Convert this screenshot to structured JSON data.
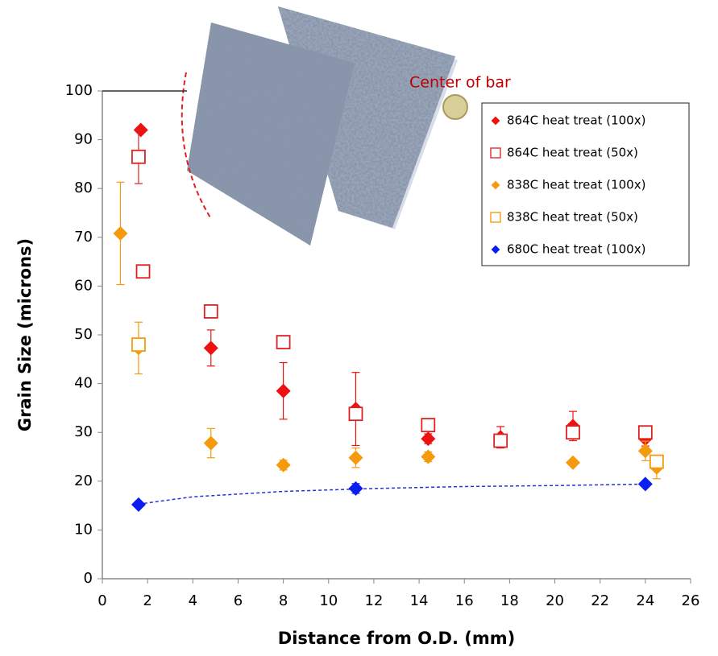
{
  "chart_data": {
    "type": "scatter",
    "xlabel": "Distance from O.D. (mm)",
    "ylabel": "Grain Size (microns)",
    "annotation": "Center of bar",
    "xlim": [
      0,
      26
    ],
    "xticks": [
      0,
      2,
      4,
      6,
      8,
      10,
      12,
      14,
      16,
      18,
      20,
      22,
      24,
      26
    ],
    "ylim": [
      0,
      100
    ],
    "yticks": [
      0,
      10,
      20,
      30,
      40,
      50,
      60,
      70,
      80,
      90,
      100
    ],
    "legend": "upper right",
    "series": [
      {
        "name": "864C heat treat (100x)",
        "color": "#ee1111",
        "marker": "diamond",
        "x": [
          1.7,
          4.8,
          8,
          11.2,
          14.4,
          17.6,
          20.8,
          24
        ],
        "values": [
          92,
          47.3,
          38.5,
          34.8,
          28.7,
          29,
          31.3,
          28.7
        ],
        "errors": [
          null,
          3.7,
          5.8,
          7.5,
          1,
          2.2,
          3,
          1.5
        ]
      },
      {
        "name": "864C heat treat (50x)",
        "color": "#dd2222",
        "marker": "open-square",
        "x": [
          1.6,
          1.8,
          4.8,
          8,
          11.2,
          14.4,
          17.6,
          20.8,
          24
        ],
        "values": [
          86.5,
          63,
          54.8,
          48.5,
          33.8,
          31.5,
          28.3,
          30,
          30
        ],
        "errors": [
          5.5,
          null,
          null,
          null,
          null,
          null,
          null,
          null,
          null
        ]
      },
      {
        "name": "838C heat treat (100x)",
        "color": "#f59a0c",
        "marker": "diamond",
        "x": [
          0.8,
          1.6,
          4.8,
          8,
          11.2,
          14.4,
          20.8,
          24,
          24.5
        ],
        "values": [
          70.8,
          47.3,
          27.8,
          23.3,
          24.8,
          25,
          23.8,
          26.2,
          22.8
        ],
        "errors": [
          10.5,
          5.3,
          3,
          1,
          2,
          1,
          null,
          2,
          2.3
        ]
      },
      {
        "name": "838C heat treat (50x)",
        "color": "#f59a0c",
        "marker": "open-square",
        "x": [
          1.6,
          24.5
        ],
        "values": [
          48,
          24
        ],
        "errors": [
          null,
          null
        ]
      },
      {
        "name": "680C heat treat (100x)",
        "color": "#0a1ef0",
        "marker": "diamond",
        "x": [
          1.6,
          11.2,
          24
        ],
        "values": [
          15.2,
          18.5,
          19.4
        ],
        "errors": [
          null,
          1,
          null
        ]
      }
    ],
    "trendline": {
      "color": "#2233dd",
      "x": [
        1.6,
        4,
        8,
        12,
        16,
        20,
        24
      ],
      "values": [
        15.3,
        16.8,
        17.9,
        18.5,
        18.9,
        19.1,
        19.4
      ]
    }
  }
}
